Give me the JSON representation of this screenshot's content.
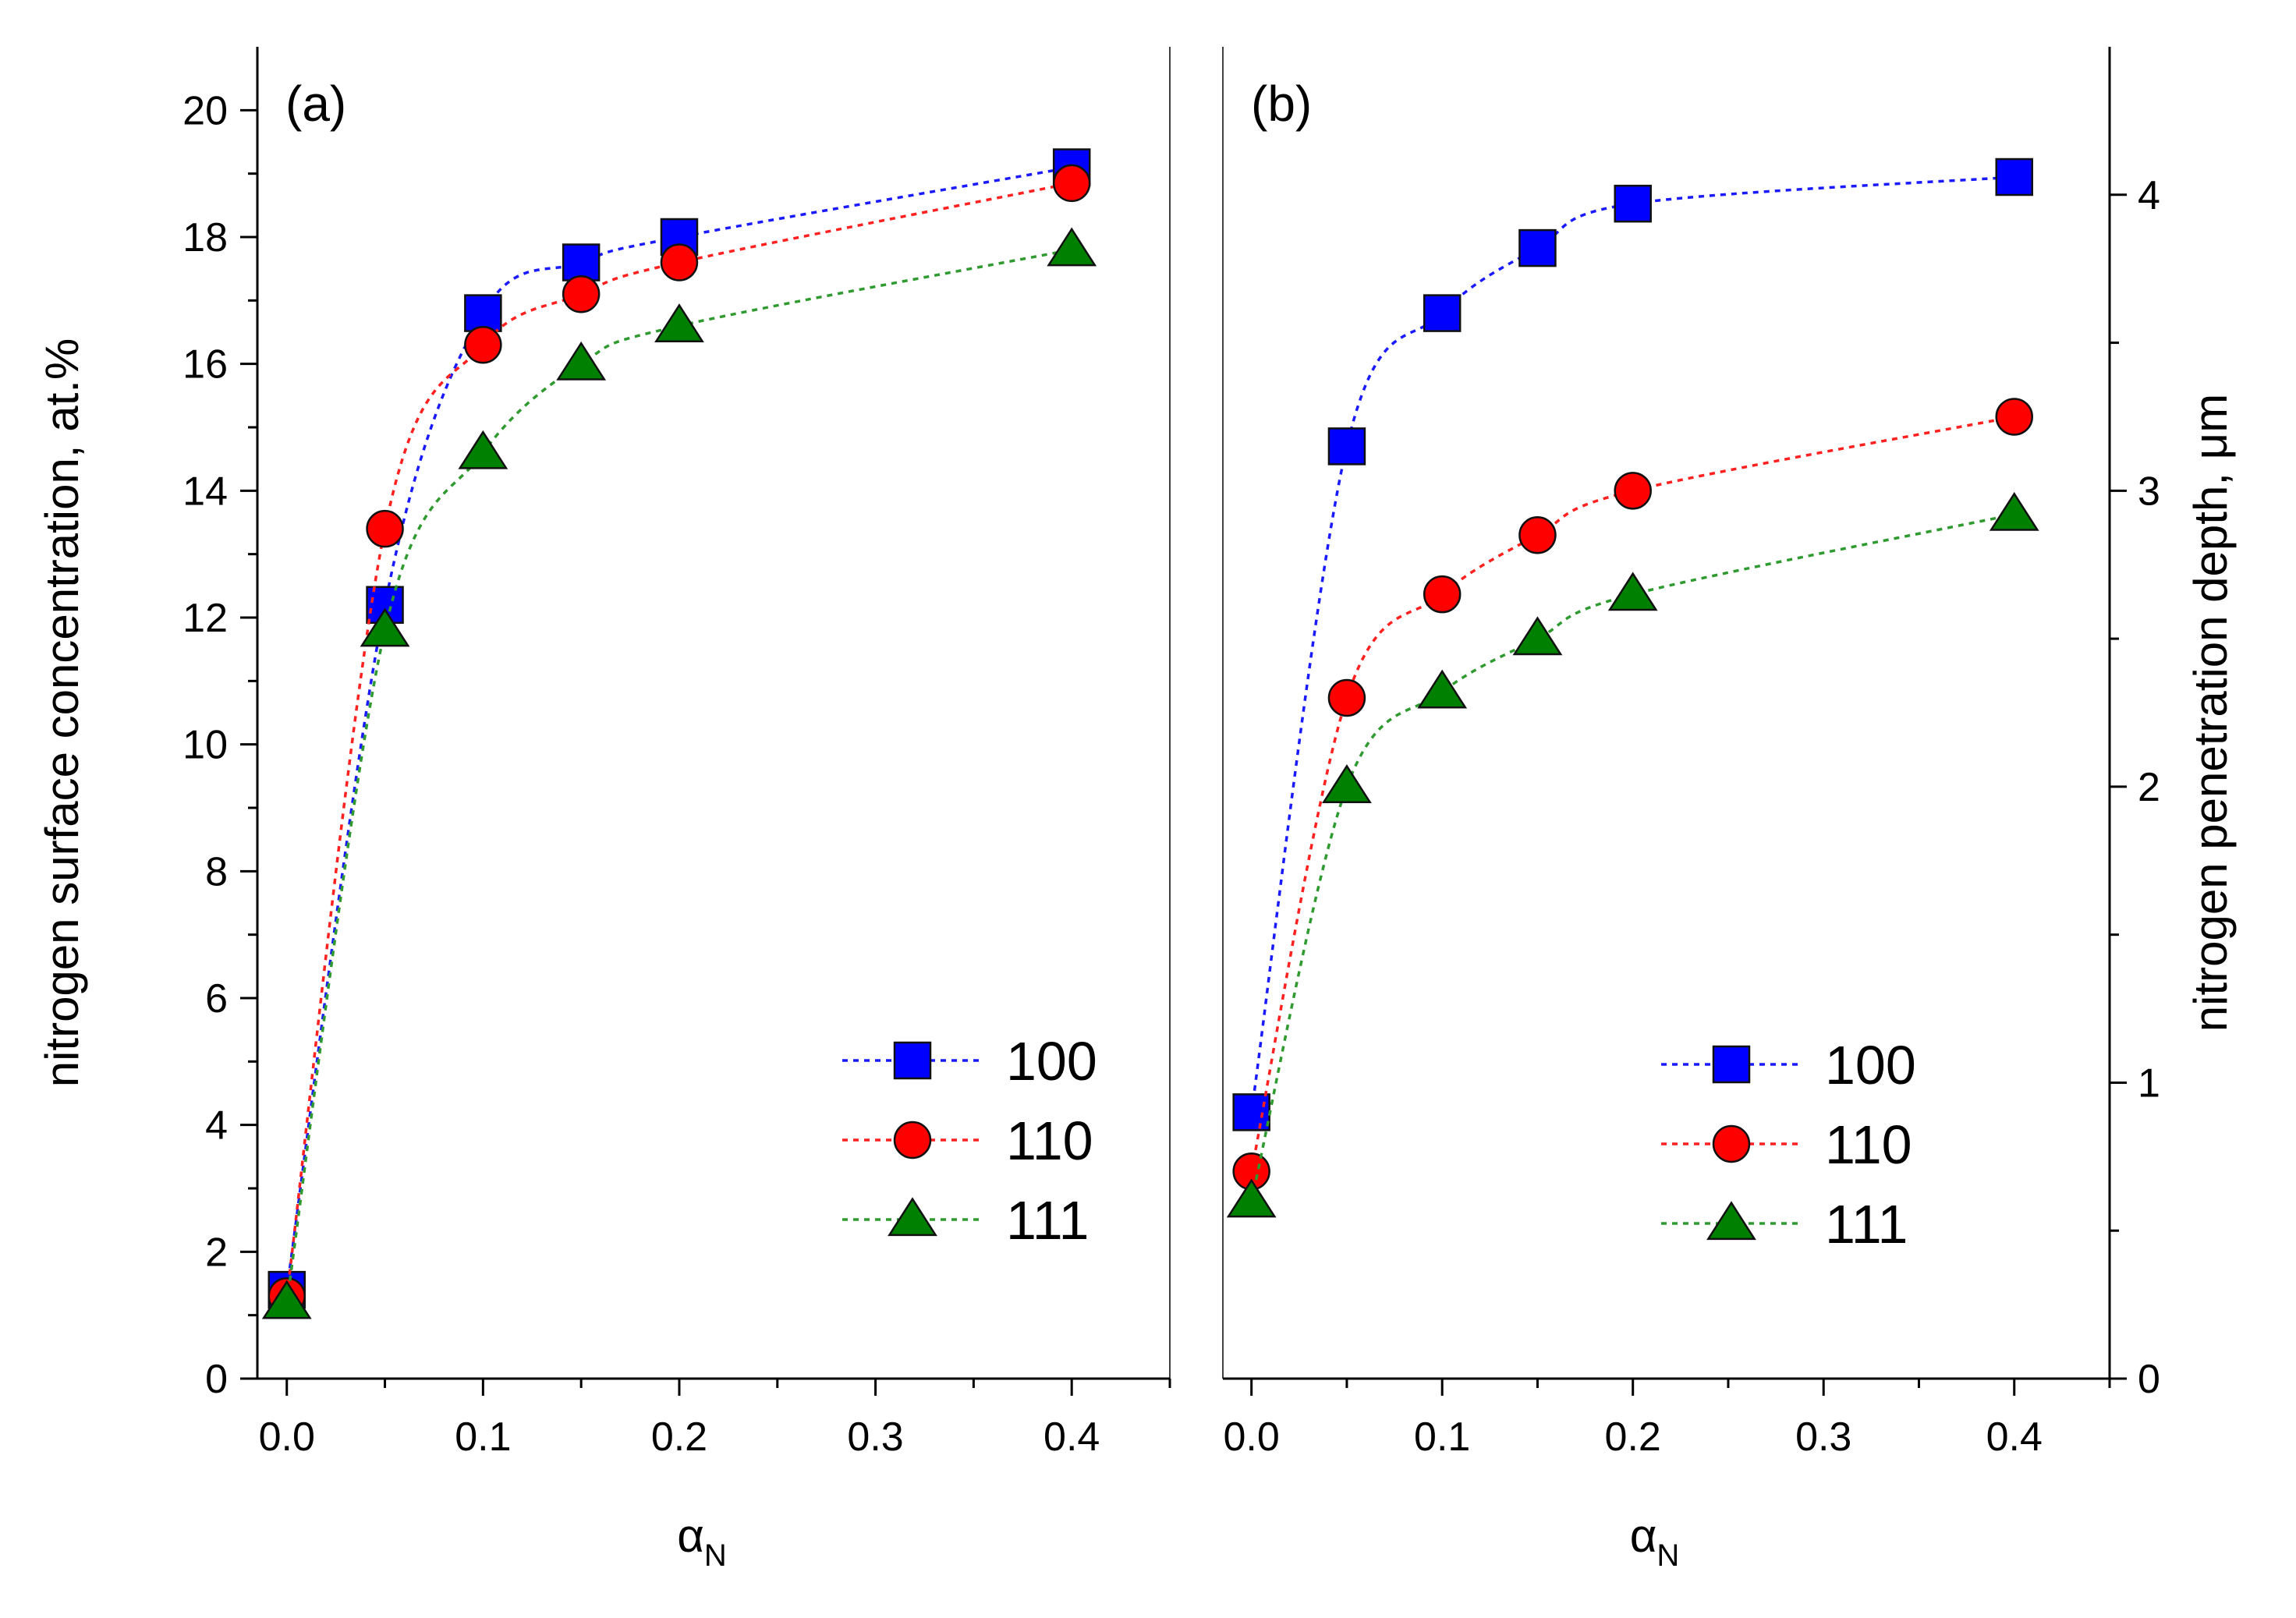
{
  "chart_data": [
    {
      "type": "line",
      "panel_label": "(a)",
      "xlabel": "α",
      "xlabel_sub": "N",
      "ylabel": "nitrogen surface concentration, at.%",
      "xlim": [
        -0.015,
        0.45
      ],
      "ylim": [
        0,
        21
      ],
      "xticks": [
        "0.0",
        "0.1",
        "0.2",
        "0.3",
        "0.4"
      ],
      "yticks": [
        "0",
        "2",
        "4",
        "6",
        "8",
        "10",
        "12",
        "14",
        "16",
        "18",
        "20"
      ],
      "legend_position": "bottom-right",
      "x": [
        0.0,
        0.05,
        0.1,
        0.15,
        0.2,
        0.4
      ],
      "series": [
        {
          "name": "100",
          "color": "#0000ff",
          "line_color": "#1a1aff",
          "marker": "square",
          "values": [
            1.4,
            12.2,
            16.8,
            17.6,
            18.0,
            19.1
          ]
        },
        {
          "name": "110",
          "color": "#ff0000",
          "line_color": "#ff2020",
          "marker": "circle",
          "values": [
            1.3,
            13.4,
            16.3,
            17.1,
            17.6,
            18.85
          ]
        },
        {
          "name": "111",
          "color": "#008000",
          "line_color": "#2f9a2f",
          "marker": "triangle",
          "values": [
            1.2,
            11.8,
            14.6,
            16.0,
            16.6,
            17.8
          ]
        }
      ]
    },
    {
      "type": "line",
      "panel_label": "(b)",
      "xlabel": "α",
      "xlabel_sub": "N",
      "ylabel": "nitrogen penetration depth, μm",
      "xlim": [
        -0.015,
        0.45
      ],
      "ylim": [
        0,
        4.5
      ],
      "xticks": [
        "0.0",
        "0.1",
        "0.2",
        "0.3",
        "0.4"
      ],
      "yticks": [
        "0",
        "1",
        "2",
        "3",
        "4"
      ],
      "legend_position": "bottom-right",
      "x": [
        0.0,
        0.05,
        0.1,
        0.15,
        0.2,
        0.4
      ],
      "series": [
        {
          "name": "100",
          "color": "#0000ff",
          "line_color": "#1a1aff",
          "marker": "square",
          "values": [
            0.9,
            3.15,
            3.6,
            3.82,
            3.97,
            4.06
          ]
        },
        {
          "name": "110",
          "color": "#ff0000",
          "line_color": "#ff2020",
          "marker": "circle",
          "values": [
            0.7,
            2.3,
            2.65,
            2.85,
            3.0,
            3.25
          ]
        },
        {
          "name": "111",
          "color": "#008000",
          "line_color": "#2f9a2f",
          "marker": "triangle",
          "values": [
            0.6,
            2.0,
            2.32,
            2.5,
            2.65,
            2.92
          ]
        }
      ]
    }
  ]
}
